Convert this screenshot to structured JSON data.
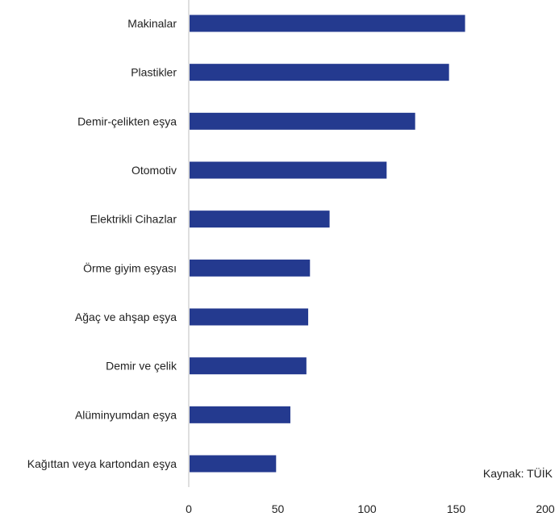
{
  "chart_data": {
    "type": "bar",
    "orientation": "horizontal",
    "categories": [
      "Makinalar",
      "Plastikler",
      "Demir-çelikten eşya",
      "Otomotiv",
      "Elektrikli Cihazlar",
      "Örme giyim eşyası",
      "Ağaç ve ahşap eşya",
      "Demir ve çelik",
      "Alüminyumdan eşya",
      "Kağıttan veya kartondan eşya"
    ],
    "values": [
      155,
      146,
      127,
      111,
      79,
      68,
      67,
      66,
      57,
      49
    ],
    "xlim": [
      0,
      200
    ],
    "xticks": [
      "0",
      "50",
      "100",
      "150",
      "200"
    ],
    "title": "",
    "xlabel": "",
    "ylabel": "",
    "grid": false,
    "legend": "none",
    "colors": {
      "bar": "#243A8F",
      "axis": "#BFBFBF",
      "text": "#222222"
    }
  },
  "source": "Kaynak: TÜİK"
}
